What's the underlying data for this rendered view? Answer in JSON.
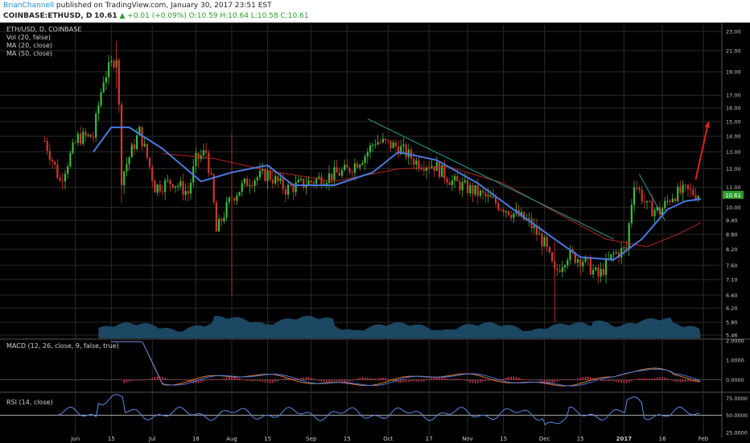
{
  "header": {
    "author": "BrianChannell",
    "published": "published on TradingView.com, January 30, 2017 23:51 EST",
    "symbol": "COINBASE:ETHUSD, D",
    "last": "10.61",
    "change": "▲ +0.01 (+0.09%)",
    "ohlc": "O:10.59 H:10.64 L:10.58 C:10.61"
  },
  "legend": {
    "title": "ETH/USD, D, COINBASE",
    "vol": "Vol (20, false)",
    "ma20": "MA (20, close)",
    "ma50": "MA (50, close)",
    "macd": "MACD (12, 26, close, 9, false, true)",
    "rsi": "RSI (14, close)"
  },
  "colors": {
    "background": "#000000",
    "grid": "#2a2a2a",
    "up_candle": "#3cba3c",
    "down_candle": "#d0392b",
    "ma20": "#4a78e0",
    "ma50": "#b3261e",
    "volume_area": "#1f4f6e",
    "trendline": "#29a090",
    "arrow": "#e0201c",
    "macd_line": "#4a78e0",
    "signal_line": "#e07a2a",
    "histogram": "#c0304a",
    "rsi_line": "#5a8be8",
    "price_box": "#2a9d2a"
  },
  "chart_data": [
    {
      "type": "candlestick",
      "title": "ETH/USD, D, COINBASE",
      "y_ticks": [
        "23.00",
        "21.00",
        "19.00",
        "17.00",
        "16.00",
        "15.00",
        "14.00",
        "13.00",
        "12.00",
        "11.00",
        "10.00",
        "9.40",
        "8.80",
        "8.20",
        "7.60",
        "7.10",
        "6.60",
        "6.20",
        "5.80",
        "5.46"
      ],
      "y_scale": "log",
      "ylim": [
        5.46,
        23.0
      ],
      "x_ticks": [
        "Jun",
        "15",
        "Jul",
        "18",
        "Aug",
        "15",
        "Sep",
        "15",
        "Oct",
        "17",
        "Nov",
        "15",
        "Dec",
        "15",
        "2017",
        "16",
        "Feb"
      ],
      "current_price": "10.61",
      "close_path": [
        [
          "2016-05-20",
          13.7
        ],
        [
          "2016-05-26",
          11.3
        ],
        [
          "2016-06-02",
          13.9
        ],
        [
          "2016-06-08",
          14.0
        ],
        [
          "2016-06-12",
          18.4
        ],
        [
          "2016-06-17",
          20.5
        ],
        [
          "2016-06-19",
          11.5
        ],
        [
          "2016-06-26",
          14.3
        ],
        [
          "2016-07-02",
          11.0
        ],
        [
          "2016-07-09",
          11.3
        ],
        [
          "2016-07-15",
          10.7
        ],
        [
          "2016-07-18",
          12.5
        ],
        [
          "2016-07-22",
          13.0
        ],
        [
          "2016-07-24",
          11.3
        ],
        [
          "2016-07-26",
          8.9
        ],
        [
          "2016-08-01",
          10.5
        ],
        [
          "2016-08-08",
          11.4
        ],
        [
          "2016-08-15",
          11.7
        ],
        [
          "2016-08-22",
          10.9
        ],
        [
          "2016-09-01",
          11.3
        ],
        [
          "2016-09-15",
          11.9
        ],
        [
          "2016-09-22",
          12.8
        ],
        [
          "2016-09-26",
          13.7
        ],
        [
          "2016-10-05",
          13.3
        ],
        [
          "2016-10-12",
          12.4
        ],
        [
          "2016-10-19",
          12.2
        ],
        [
          "2016-10-26",
          11.3
        ],
        [
          "2016-11-05",
          10.7
        ],
        [
          "2016-11-15",
          10.0
        ],
        [
          "2016-11-25",
          9.3
        ],
        [
          "2016-12-01",
          8.4
        ],
        [
          "2016-12-05",
          7.3
        ],
        [
          "2016-12-10",
          8.0
        ],
        [
          "2016-12-16",
          7.8
        ],
        [
          "2016-12-22",
          7.2
        ],
        [
          "2016-12-28",
          8.0
        ],
        [
          "2017-01-02",
          8.2
        ],
        [
          "2017-01-05",
          11.3
        ],
        [
          "2017-01-10",
          10.0
        ],
        [
          "2017-01-15",
          9.8
        ],
        [
          "2017-01-20",
          10.6
        ],
        [
          "2017-01-25",
          10.8
        ],
        [
          "2017-01-31",
          10.61
        ]
      ],
      "ma20_path": [
        [
          "2016-06-08",
          13.0
        ],
        [
          "2016-06-15",
          14.6
        ],
        [
          "2016-06-22",
          14.6
        ],
        [
          "2016-07-05",
          13.2
        ],
        [
          "2016-07-20",
          11.3
        ],
        [
          "2016-08-01",
          11.8
        ],
        [
          "2016-08-15",
          12.2
        ],
        [
          "2016-08-25",
          11.1
        ],
        [
          "2016-09-10",
          11.1
        ],
        [
          "2016-09-25",
          11.8
        ],
        [
          "2016-10-05",
          13.0
        ],
        [
          "2016-10-20",
          12.5
        ],
        [
          "2016-11-05",
          11.2
        ],
        [
          "2016-11-20",
          9.8
        ],
        [
          "2016-12-05",
          8.6
        ],
        [
          "2016-12-15",
          7.9
        ],
        [
          "2016-12-28",
          7.8
        ],
        [
          "2017-01-08",
          8.6
        ],
        [
          "2017-01-18",
          9.9
        ],
        [
          "2017-01-25",
          10.3
        ],
        [
          "2017-01-31",
          10.4
        ]
      ],
      "ma50_path": [
        [
          "2016-07-05",
          12.9
        ],
        [
          "2016-07-25",
          12.6
        ],
        [
          "2016-08-15",
          11.9
        ],
        [
          "2016-09-10",
          11.3
        ],
        [
          "2016-10-05",
          12.0
        ],
        [
          "2016-10-25",
          12.1
        ],
        [
          "2016-11-15",
          11.2
        ],
        [
          "2016-12-05",
          9.8
        ],
        [
          "2016-12-25",
          8.6
        ],
        [
          "2017-01-10",
          8.3
        ],
        [
          "2017-01-22",
          8.8
        ],
        [
          "2017-01-31",
          9.3
        ]
      ],
      "trendlines": [
        [
          [
            "2016-09-23",
            15.2
          ],
          [
            "2016-12-28",
            8.6
          ]
        ],
        [
          [
            "2017-01-07",
            11.7
          ],
          [
            "2017-01-17",
            9.4
          ]
        ]
      ],
      "arrow": [
        [
          "2017-01-29",
          11.4
        ],
        [
          "2017-02-03",
          15.0
        ]
      ]
    },
    {
      "type": "line",
      "title": "MACD (12, 26, close, 9, false, true)",
      "y_ticks": [
        "2.0000",
        "1.0000",
        "0.0000"
      ],
      "ylim": [
        -0.6,
        2.0
      ]
    },
    {
      "type": "line",
      "title": "RSI (14, close)",
      "y_ticks": [
        "75.0000",
        "50.0000",
        "25.0000"
      ],
      "ylim": [
        20,
        80
      ]
    }
  ]
}
